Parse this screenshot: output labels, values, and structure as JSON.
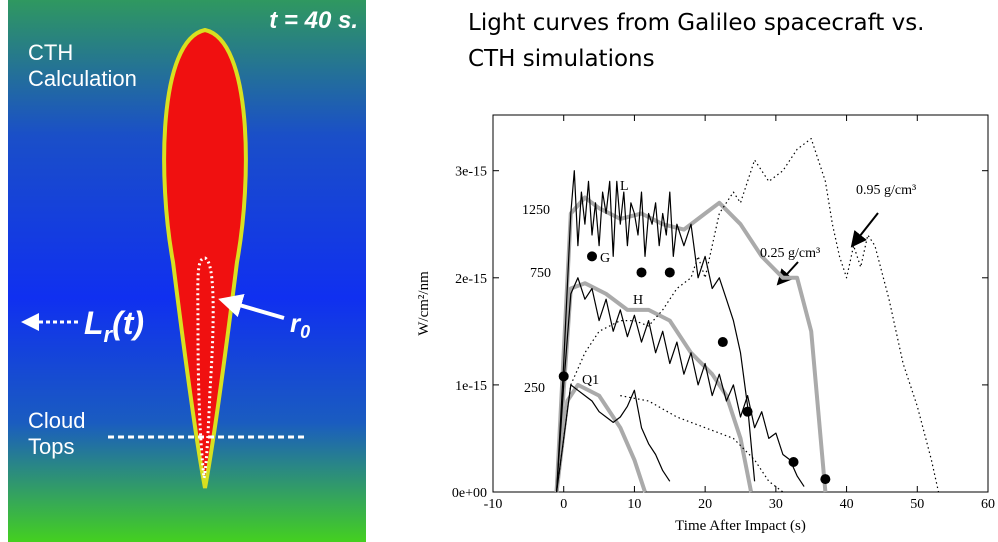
{
  "slide": {
    "title_lines": [
      "Light curves from Galileo spacecraft vs.",
      "CTH simulations"
    ]
  },
  "panel": {
    "time": "t = 40 s.",
    "label_lines": [
      "CTH",
      "Calculation"
    ],
    "luminosity": "L",
    "luminosity_sub": "r",
    "luminosity_arg": "(t)",
    "radius": "r",
    "radius_sub": "0",
    "cloud_lines": [
      "Cloud",
      "Tops"
    ]
  },
  "chart_data": {
    "type": "line",
    "xlabel": "Time After Impact (s)",
    "ylabel": "W/cm²/nm",
    "xlim": [
      -10,
      60
    ],
    "xticks": [
      -10,
      0,
      10,
      20,
      30,
      40,
      50,
      60
    ],
    "ylim": [
      0,
      3.52e-15
    ],
    "yticks": [
      {
        "value": 0,
        "label": "0e+00"
      },
      {
        "value": 1e-15,
        "label": "1e-15"
      },
      {
        "value": 2e-15,
        "label": "2e-15"
      },
      {
        "value": 3e-15,
        "label": "3e-15"
      }
    ],
    "series": [
      {
        "color": "#aaaaaa",
        "style": "solid",
        "width": 4,
        "x": [
          -1,
          1,
          3,
          5,
          8,
          11,
          14,
          17,
          20,
          22,
          25,
          28,
          31,
          33,
          35,
          37
        ],
        "values": [
          0,
          2.6e-15,
          2.75e-15,
          2.65e-15,
          2.55e-15,
          2.6e-15,
          2.5e-15,
          2.45e-15,
          2.6e-15,
          2.7e-15,
          2.5e-15,
          2.2e-15,
          2e-15,
          2e-15,
          1.5e-15,
          0
        ]
      },
      {
        "color": "#aaaaaa",
        "style": "solid",
        "width": 4,
        "x": [
          -1,
          1,
          3,
          6,
          9,
          12,
          15,
          18,
          21,
          23,
          25,
          26.5
        ],
        "values": [
          0,
          1.9e-15,
          1.95e-15,
          1.85e-15,
          1.7e-15,
          1.7e-15,
          1.6e-15,
          1.3e-15,
          1.1e-15,
          9e-16,
          5e-16,
          0
        ]
      },
      {
        "color": "#aaaaaa",
        "style": "solid",
        "width": 4,
        "x": [
          -1,
          0.5,
          2,
          5,
          8,
          10,
          11.5
        ],
        "values": [
          0,
          8.5e-16,
          1e-15,
          9e-16,
          6e-16,
          3e-16,
          0
        ]
      },
      {
        "color": "#000000",
        "style": "solid",
        "width": 1.2,
        "x": [
          -1,
          0,
          1,
          1.5,
          2,
          2.5,
          3,
          3.5,
          4,
          4.5,
          5,
          5.5,
          6,
          6.5,
          7,
          7.5,
          8,
          8.5,
          9,
          9.5,
          10,
          10.5,
          11,
          11.5,
          12,
          12.5,
          13,
          13.5,
          14,
          14.5,
          15,
          15.5,
          16,
          17,
          18,
          19,
          20,
          21,
          22,
          23,
          24,
          25,
          26,
          27
        ],
        "values": [
          0,
          1.2e-15,
          2.6e-15,
          3e-15,
          2.3e-15,
          2.8e-15,
          2.5e-15,
          2.9e-15,
          2.4e-15,
          2.7e-15,
          2.3e-15,
          2.8e-15,
          2.6e-15,
          2.9e-15,
          2.2e-15,
          2.9e-15,
          2.5e-15,
          2.8e-15,
          2.3e-15,
          2.7e-15,
          2.6e-15,
          2.4e-15,
          2.8e-15,
          2.2e-15,
          2.6e-15,
          2.5e-15,
          2.7e-15,
          2.3e-15,
          2.6e-15,
          2.4e-15,
          2.8e-15,
          2.2e-15,
          2.5e-15,
          2.3e-15,
          2.5e-15,
          2e-15,
          2.2e-15,
          1.9e-15,
          2e-15,
          1.8e-15,
          1.6e-15,
          1.3e-15,
          8e-16,
          1e-16
        ]
      },
      {
        "color": "#000000",
        "style": "solid",
        "width": 1.2,
        "x": [
          -1,
          0,
          1,
          2,
          3,
          4,
          5,
          6,
          7,
          8,
          9,
          10,
          11,
          12,
          13,
          14,
          15,
          16,
          17,
          18,
          19,
          20,
          21,
          22,
          23,
          24,
          25,
          26,
          27,
          28,
          29,
          30,
          31,
          32,
          33,
          34
        ],
        "values": [
          0,
          1e-15,
          1.85e-15,
          2e-15,
          1.8e-15,
          1.9e-15,
          1.6e-15,
          1.8e-15,
          1.5e-15,
          1.7e-15,
          1.45e-15,
          1.65e-15,
          1.4e-15,
          1.6e-15,
          1.3e-15,
          1.5e-15,
          1.2e-15,
          1.4e-15,
          1.1e-15,
          1.3e-15,
          1e-15,
          1.2e-15,
          9e-16,
          1.1e-15,
          8.5e-16,
          1e-15,
          7e-16,
          9e-16,
          6e-16,
          7.5e-16,
          5e-16,
          5.5e-16,
          3.5e-16,
          3e-16,
          1.5e-16,
          5e-17
        ]
      },
      {
        "color": "#000000",
        "style": "solid",
        "width": 1.2,
        "x": [
          -1,
          0,
          1,
          2,
          3,
          4,
          5,
          6,
          7,
          8,
          9,
          10,
          11,
          12,
          13,
          14,
          15
        ],
        "values": [
          0,
          5e-16,
          1e-15,
          9.5e-16,
          9e-16,
          8.5e-16,
          7.5e-16,
          7e-16,
          6.5e-16,
          7e-16,
          8e-16,
          9.5e-16,
          6e-16,
          4.5e-16,
          3.5e-16,
          2e-16,
          1e-16
        ]
      },
      {
        "color": "#000000",
        "style": "dotted",
        "width": 1.2,
        "x": [
          -1,
          1,
          3,
          5,
          8,
          10,
          12,
          14,
          16,
          18,
          19,
          20,
          22,
          24,
          25,
          27,
          29,
          31,
          33,
          35,
          37,
          38,
          39,
          40,
          41,
          42,
          43,
          44,
          46,
          48,
          50,
          52,
          53
        ],
        "values": [
          0,
          1e-15,
          1.3e-15,
          1.5e-15,
          1.6e-15,
          1.6e-15,
          1.55e-15,
          1.7e-15,
          1.9e-15,
          2e-15,
          2.2e-15,
          2e-15,
          2.6e-15,
          2.8e-15,
          2.7e-15,
          3.1e-15,
          2.9e-15,
          3e-15,
          3.2e-15,
          3.3e-15,
          2.9e-15,
          2.5e-15,
          2.2e-15,
          2e-15,
          2.3e-15,
          2.1e-15,
          2.4e-15,
          2.3e-15,
          1.8e-15,
          1.2e-15,
          8e-16,
          3e-16,
          0
        ]
      },
      {
        "color": "#000000",
        "style": "dotted",
        "width": 1.2,
        "x": [
          8,
          12,
          16,
          20,
          24,
          27,
          29,
          31
        ],
        "values": [
          9e-16,
          8.5e-16,
          7e-16,
          6e-16,
          5e-16,
          3e-16,
          1e-16,
          0
        ]
      }
    ],
    "points": {
      "color": "#000000",
      "x": [
        0,
        4,
        11,
        15,
        22.5,
        26,
        32.5,
        37
      ],
      "values": [
        1.08e-15,
        2.2e-15,
        2.05e-15,
        2.05e-15,
        1.4e-15,
        7.5e-16,
        2.8e-16,
        1.2e-16
      ]
    },
    "annotations": [
      "L",
      "G",
      "H",
      "Q1",
      "1250",
      "750",
      "250",
      "0.95 g/cm³",
      "0.25 g/cm³"
    ]
  }
}
